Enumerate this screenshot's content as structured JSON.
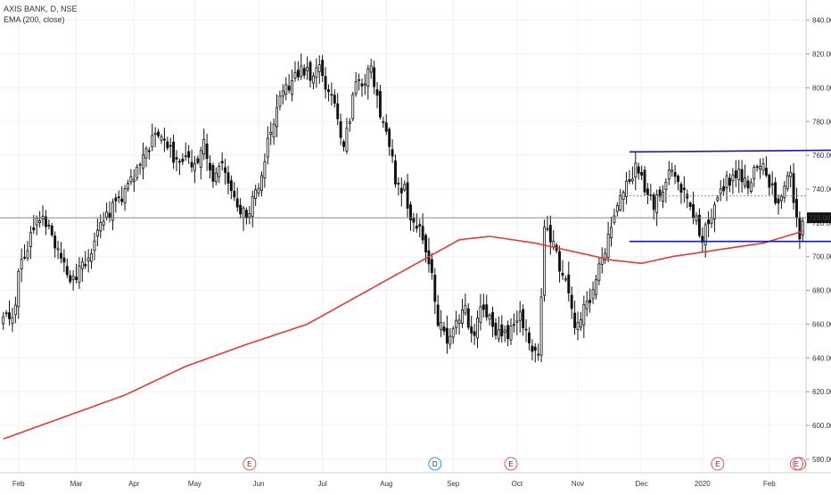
{
  "legend": {
    "symbol_line": "AXIS BANK, D, NSE",
    "indicator_line": "EMA (200, close)"
  },
  "chart_data": {
    "type": "candlestick",
    "x_ticks": [
      "Feb",
      "Mar",
      "Apr",
      "May",
      "Jun",
      "Jul",
      "Aug",
      "Sep",
      "Oct",
      "Nov",
      "Dec",
      "2020",
      "Feb"
    ],
    "y_ticks": [
      "580.00",
      "600.00",
      "620.00",
      "640.00",
      "660.00",
      "680.00",
      "700.00",
      "720.00",
      "740.00",
      "760.00",
      "780.00",
      "800.00",
      "820.00",
      "840.00"
    ],
    "ylim": [
      572,
      852
    ],
    "last_price": "723.00",
    "trading_days": 264,
    "close_anchors": [
      [
        0,
        665
      ],
      [
        3,
        660
      ],
      [
        5,
        690
      ],
      [
        10,
        720
      ],
      [
        13,
        728
      ],
      [
        16,
        712
      ],
      [
        19,
        697
      ],
      [
        22,
        688
      ],
      [
        25,
        692
      ],
      [
        28,
        700
      ],
      [
        31,
        718
      ],
      [
        35,
        728
      ],
      [
        39,
        735
      ],
      [
        43,
        748
      ],
      [
        47,
        762
      ],
      [
        50,
        775
      ],
      [
        53,
        768
      ],
      [
        57,
        758
      ],
      [
        61,
        755
      ],
      [
        64,
        760
      ],
      [
        66,
        768
      ],
      [
        69,
        745
      ],
      [
        72,
        755
      ],
      [
        74,
        740
      ],
      [
        77,
        728
      ],
      [
        80,
        722
      ],
      [
        83,
        738
      ],
      [
        86,
        760
      ],
      [
        89,
        782
      ],
      [
        92,
        795
      ],
      [
        95,
        802
      ],
      [
        98,
        812
      ],
      [
        101,
        808
      ],
      [
        104,
        810
      ],
      [
        106,
        800
      ],
      [
        109,
        787
      ],
      [
        112,
        768
      ],
      [
        114,
        782
      ],
      [
        116,
        800
      ],
      [
        119,
        806
      ],
      [
        121,
        812
      ],
      [
        123,
        795
      ],
      [
        126,
        770
      ],
      [
        129,
        748
      ],
      [
        132,
        738
      ],
      [
        134,
        724
      ],
      [
        137,
        716
      ],
      [
        139,
        706
      ],
      [
        141,
        686
      ],
      [
        143,
        664
      ],
      [
        146,
        652
      ],
      [
        149,
        665
      ],
      [
        152,
        667
      ],
      [
        155,
        655
      ],
      [
        158,
        672
      ],
      [
        161,
        660
      ],
      [
        164,
        650
      ],
      [
        167,
        658
      ],
      [
        170,
        668
      ],
      [
        172,
        655
      ],
      [
        174,
        645
      ],
      [
        176,
        640
      ],
      [
        178,
        718
      ],
      [
        180,
        712
      ],
      [
        182,
        700
      ],
      [
        185,
        682
      ],
      [
        188,
        662
      ],
      [
        191,
        668
      ],
      [
        194,
        682
      ],
      [
        197,
        700
      ],
      [
        200,
        715
      ],
      [
        203,
        732
      ],
      [
        206,
        748
      ],
      [
        209,
        752
      ],
      [
        212,
        738
      ],
      [
        214,
        728
      ],
      [
        217,
        742
      ],
      [
        219,
        756
      ],
      [
        222,
        745
      ],
      [
        225,
        732
      ],
      [
        228,
        722
      ],
      [
        230,
        712
      ],
      [
        233,
        725
      ],
      [
        236,
        742
      ],
      [
        239,
        745
      ],
      [
        242,
        752
      ],
      [
        245,
        738
      ],
      [
        247,
        755
      ],
      [
        250,
        758
      ],
      [
        253,
        738
      ],
      [
        255,
        728
      ],
      [
        257,
        742
      ],
      [
        259,
        748
      ],
      [
        261,
        722
      ],
      [
        262,
        712
      ],
      [
        263,
        723
      ]
    ],
    "ema_anchors": [
      [
        0,
        592
      ],
      [
        20,
        605
      ],
      [
        40,
        618
      ],
      [
        60,
        635
      ],
      [
        80,
        648
      ],
      [
        100,
        660
      ],
      [
        120,
        680
      ],
      [
        140,
        700
      ],
      [
        150,
        710
      ],
      [
        160,
        712
      ],
      [
        175,
        708
      ],
      [
        190,
        702
      ],
      [
        200,
        698
      ],
      [
        210,
        696
      ],
      [
        220,
        700
      ],
      [
        235,
        704
      ],
      [
        250,
        708
      ],
      [
        263,
        715
      ]
    ],
    "lines": [
      {
        "name": "channel-top",
        "x_day": [
          206,
          263
        ],
        "y": [
          762,
          763
        ],
        "color": "#1a1aa8"
      },
      {
        "name": "channel-bottom",
        "x_day": [
          206,
          263
        ],
        "y": [
          709,
          709
        ],
        "color": "#1a1aa8"
      }
    ],
    "events": [
      {
        "day": 81,
        "label": "E",
        "color": "#e05555"
      },
      {
        "day": 142,
        "label": "D",
        "color": "#2196f3"
      },
      {
        "day": 167,
        "label": "E",
        "color": "#e05555"
      },
      {
        "day": 235,
        "label": "E",
        "color": "#e05555"
      },
      {
        "day": 261,
        "label": "E",
        "color": "#e05555"
      }
    ],
    "colors": {
      "candle": "#111111",
      "ema": "#e53935",
      "price_line": "#777777",
      "price_tag": "#111111",
      "dotted": "#42a5f5",
      "grid": "#f0f0f0"
    }
  }
}
